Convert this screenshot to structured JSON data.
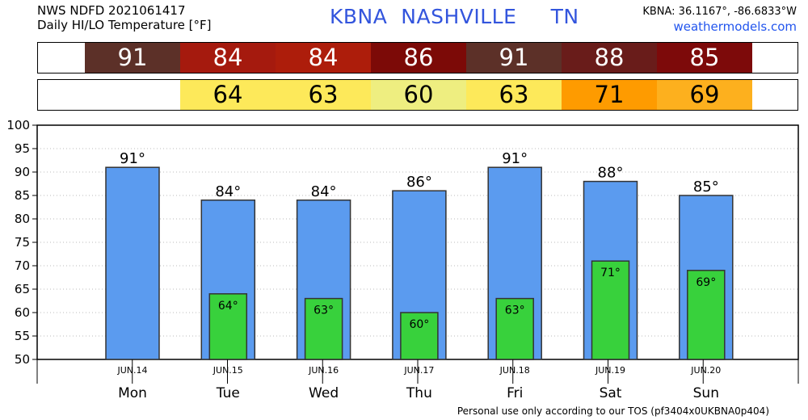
{
  "header": {
    "line1": "NWS NDFD 2021061417",
    "line2": "Daily HI/LO Temperature [°F]",
    "station_code": "KBNA",
    "station_name": "NASHVILLE",
    "state": "TN",
    "coords": "KBNA: 36.1167°, -86.6833°W",
    "site": "weathermodels.com"
  },
  "hi_strip": [
    {
      "value": "91",
      "color": "#5c3028"
    },
    {
      "value": "84",
      "color": "#a51a0e"
    },
    {
      "value": "84",
      "color": "#ad1d0b"
    },
    {
      "value": "86",
      "color": "#7c0a07"
    },
    {
      "value": "91",
      "color": "#5c3028"
    },
    {
      "value": "88",
      "color": "#691c1a"
    },
    {
      "value": "85",
      "color": "#7d0a0a"
    }
  ],
  "lo_strip": [
    {
      "value": "",
      "color": "#ffffff"
    },
    {
      "value": "64",
      "color": "#fde95a"
    },
    {
      "value": "63",
      "color": "#fde95a"
    },
    {
      "value": "60",
      "color": "#eeee80"
    },
    {
      "value": "63",
      "color": "#fde95a"
    },
    {
      "value": "71",
      "color": "#fe9b00"
    },
    {
      "value": "69",
      "color": "#fdb01e"
    }
  ],
  "chart_data": {
    "type": "bar",
    "categories": [
      "JUN.14",
      "JUN.15",
      "JUN.16",
      "JUN.17",
      "JUN.18",
      "JUN.19",
      "JUN.20"
    ],
    "days": [
      "Mon",
      "Tue",
      "Wed",
      "Thu",
      "Fri",
      "Sat",
      "Sun"
    ],
    "series": [
      {
        "values": [
          91,
          84,
          84,
          86,
          91,
          88,
          85
        ],
        "color": "#5b9bef"
      },
      {
        "values": [
          null,
          64,
          63,
          60,
          63,
          71,
          69
        ],
        "color": "#38d13c"
      }
    ],
    "hi_labels": [
      "91°",
      "84°",
      "84°",
      "86°",
      "91°",
      "88°",
      "85°"
    ],
    "lo_labels": [
      "",
      "64°",
      "63°",
      "60°",
      "63°",
      "71°",
      "69°"
    ],
    "ylim": [
      50,
      100
    ],
    "yticks": [
      50,
      55,
      60,
      65,
      70,
      75,
      80,
      85,
      90,
      95,
      100
    ],
    "grid": true
  },
  "footer": "Personal use only according to our TOS (pf3404x0UKBNA0p404)"
}
